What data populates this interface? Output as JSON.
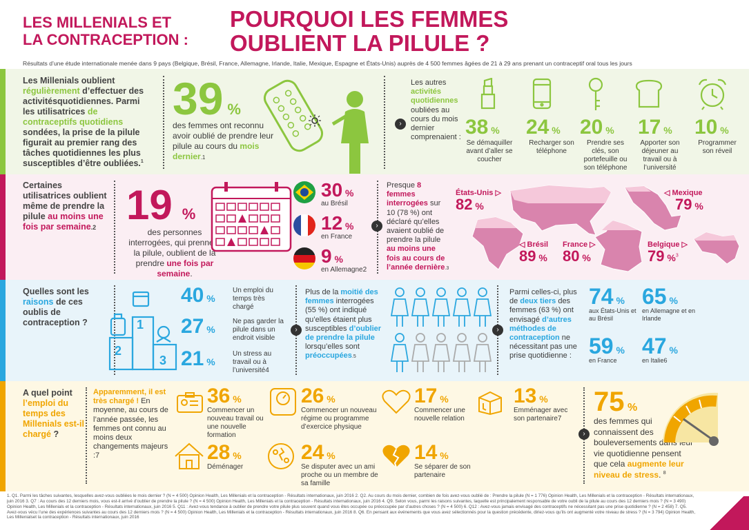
{
  "header": {
    "left_title_1": "LES MILLENIALS ET",
    "left_title_2": "LA CONTRACEPTION :",
    "main_title_1": "POURQUOI LES FEMMES",
    "main_title_2": "OUBLIENT LA PILULE ?",
    "subtitle": "Résultats d’une étude internationale menée dans 9 pays (Belgique, Brésil, France, Allemagne, Irlande, Italie, Mexique, Espagne et États-Unis) auprès de 4 500 femmes âgées de 21 à 29 ans prenant un contraceptif oral tous les jours"
  },
  "s1": {
    "intro_a": "Les Millenials oublient ",
    "intro_b": "régulièrement",
    "intro_c": " d’effectuer des activitésquotidiennes. Parmi les utilisatrices ",
    "intro_d": "de contraceptifs quotidiens",
    "intro_e": " sondées, la prise de la pilule figurait au premier rang des tâches quotidiennes les plus susceptibles d’être oubliées.",
    "intro_note": "1",
    "stat": "39",
    "pct": "%",
    "stat_text_a": "des femmes ont reconnu avoir oublié de prendre leur pilule au cours du ",
    "stat_text_b": "mois dernier",
    "stat_note": ".1",
    "other_a": "Les autres ",
    "other_b": "activités quotidiennes",
    "other_c": " oubliées au cours du mois dernier comprenaient :",
    "items": [
      {
        "value": "38",
        "label": "Se démaquiller avant d’aller se coucher",
        "icon": "lipstick-icon"
      },
      {
        "value": "24",
        "label": "Recharger son téléphone",
        "icon": "phone-icon"
      },
      {
        "value": "20",
        "label": "Prendre ses clés, son portefeuille ou son téléphone",
        "icon": "key-icon"
      },
      {
        "value": "17",
        "label": "Apporter son déjeuner au travail ou à l’université",
        "icon": "bread-icon"
      },
      {
        "value": "10",
        "label": "Programmer son réveil",
        "icon": "alarm-clock-icon"
      }
    ]
  },
  "s2": {
    "intro_a": "Certaines utilisatrices oublient même de prendre la pilule ",
    "intro_b": "au moins une fois par semaine",
    "intro_c": ".2",
    "stat": "19",
    "pct": "%",
    "stat_text_a": "des personnes interrogées, qui prennent la pilule, oublient de la prendre ",
    "stat_text_b": "une fois par semaine",
    "stat_text_c": ".",
    "countries": [
      {
        "value": "30",
        "label": "au Brésil"
      },
      {
        "value": "12",
        "label": "en France"
      },
      {
        "value": "9",
        "label": "en Allemagne2"
      }
    ],
    "mid_a": "Presque ",
    "mid_b": "8 femmes interrogées",
    "mid_c": " sur 10 (78 %) ont déclaré qu’elles avaient oublié de prendre la pilule ",
    "mid_d": "au moins une fois au cours de l’année dernière",
    "mid_e": ".3",
    "map": [
      {
        "name": "États-Unis",
        "value": "82"
      },
      {
        "name": "Mexique",
        "value": "79"
      },
      {
        "name": "Brésil",
        "value": "89"
      },
      {
        "name": "France",
        "value": "80"
      },
      {
        "name": "Belgique",
        "value": "79"
      }
    ],
    "map_note": "3"
  },
  "s3": {
    "q_a": "Quelles sont les ",
    "q_b": "raisons",
    "q_c": " de ces oublis de contraception ?",
    "podium": [
      "1",
      "2",
      "3"
    ],
    "reasons": [
      {
        "value": "40",
        "label": "Un emploi du temps très chargé"
      },
      {
        "value": "27",
        "label": "Ne pas garder la pilule dans un endroit visible"
      },
      {
        "value": "21",
        "label": "Un stress au travail ou à l’université4"
      }
    ],
    "mid_a": "Plus de la ",
    "mid_b": "moitié des femmes",
    "mid_c": " interrogées (55 %) ont indiqué qu’elles étaient plus susceptibles ",
    "mid_d": "d’oublier de prendre la pilule",
    "mid_e": " lorsqu’elles sont ",
    "mid_f": "préoccupées",
    "mid_g": ".5",
    "right_a": "Parmi celles-ci, plus de ",
    "right_b": "deux tiers",
    "right_c": " des femmes (63 %) ont envisagé ",
    "right_d": "d’autres méthodes de contraception",
    "right_e": " ne nécessitant pas une prise quotidienne :",
    "stats": [
      {
        "value": "74",
        "label": "aux États-Unis et au Brésil"
      },
      {
        "value": "65",
        "label": "en Allemagne et en Irlande"
      },
      {
        "value": "59",
        "label": "en France"
      },
      {
        "value": "47",
        "label": "en Italie6"
      }
    ]
  },
  "s4": {
    "q_a": "A quel point ",
    "q_b": "l’emploi du temps des Millenials est-il chargé",
    "q_c": " ?",
    "mid_a": "Apparemment, il est très chargé !",
    "mid_b": " En moyenne, au cours de l’année passée, les femmes ont connu au moins deux changements majeurs :7",
    "items": [
      {
        "value": "36",
        "label": "Commencer un nouveau travail ou une nouvelle formation"
      },
      {
        "value": "26",
        "label": "Commencer un nouveau régime ou programme d’exercice physique"
      },
      {
        "value": "17",
        "label": "Commencer une nouvelle relation"
      },
      {
        "value": "13",
        "label": "Emménager avec son partenaire7"
      },
      {
        "value": "28",
        "label": "Déménager"
      },
      {
        "value": "24",
        "label": "Se disputer avec un ami proche ou un membre de sa famille"
      },
      {
        "value": "14",
        "label": "Se séparer de son partenaire"
      }
    ],
    "stat": "75",
    "stat_text_a": "des femmes qui connaissent des bouleversements dans leur vie quotidienne pensent que cela ",
    "stat_text_b": "augmente leur niveau de stress",
    "stat_text_c": ".",
    "stat_note": "8"
  },
  "footnotes": "1. Q1. Parmi les tâches suivantes, lesquelles avez-vous oubliées le mois dernier ? (N = 4 500) Opinion Health, Les Millenials et la contraception - Résultats internationaux, juin 2016  2. Q2. Au cours du mois dernier, combien de fois avez-vous oublié de : Prendre la pilule (N = 1 776) Opinion Health, Les Millenials et la contraception - Résultats internationaux, juin 2016  3. Q7 : Au cours des 12 derniers mois, vous est-il arrivé d’oublier de prendre la pilule ? (N = 4 500) Opinion Health, Les Millenials et la contraception - Résultats internationaux, juin 2016  4. Q9. Selon vous, parmi les raisons suivantes, laquelle est principalement responsable de votre oubli de la pilule au cours des 12 derniers mois ? (N = 3 490) Opinion Health, Les Millenials et la contraception - Résultats internationaux, juin 2016  5. Q11 : Avez-vous tendance à oublier de prendre votre pilule plus souvent quand vous êtes occupée ou préoccupée par d’autres choses ? (N = 4 500)  6. Q12 : Avez-vous jamais envisagé des contraceptifs ne nécessitant pas une prise quotidienne ? (N = 2 458)  7. Q5. Avez-vous vécu l’une des expériences suivantes au cours des 12 derniers mois ? (N = 4 500) Opinion Health, Les Millenials et la contraception - Résultats internationaux, juin 2016  8. Q6. En pensant aux événements que vous avez sélectionnés pour la question précédente, diriez-vous qu’ils ont augmenté votre niveau de stress ? (N = 3 794) Opinion Health, Les Millenialset la contraception - Résultats internationaux, juin 2016",
  "colors": {
    "pink": "#c2185b",
    "green": "#8cc63f",
    "blue": "#2aa7df",
    "orange": "#f0a500"
  }
}
